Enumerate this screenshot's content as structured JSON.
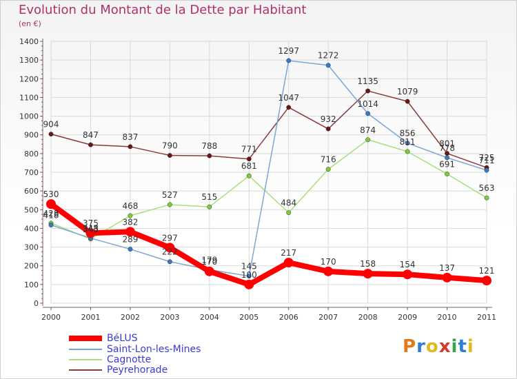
{
  "title": "Evolution du Montant de la Dette par Habitant",
  "subtitle": "(en €)",
  "logo": {
    "text": "Proxiti",
    "colors": [
      "#e07a1f",
      "#2e7ed8",
      "#e0b81f",
      "#d43b2a",
      "#3aa34a",
      "#2e7ed8",
      "#e0b81f"
    ]
  },
  "chart_data": {
    "type": "line",
    "x": [
      "2000",
      "2001",
      "2002",
      "2003",
      "2004",
      "2005",
      "2006",
      "2007",
      "2008",
      "2009",
      "2010",
      "2011"
    ],
    "ylim": [
      0,
      1400
    ],
    "yticks": [
      "0",
      "100",
      "200",
      "300",
      "400",
      "500",
      "600",
      "700",
      "800",
      "900",
      "1000",
      "1100",
      "1200",
      "1300",
      "1400"
    ],
    "grid": true,
    "legend_position": "bottom-left",
    "series": [
      {
        "name": "BéLUS",
        "color": "#ff0000",
        "point_color": "#ff0000",
        "values": [
          530,
          375,
          382,
          297,
          170,
          100,
          217,
          170,
          158,
          154,
          137,
          121
        ],
        "labels": [
          "530",
          "375",
          "382",
          "297",
          "170",
          "100",
          "217",
          "170",
          "158",
          "154",
          "137",
          "121"
        ]
      },
      {
        "name": "Saint-Lon-les-Mines",
        "color": "#7aa6d6",
        "point_color": "#3a7ac4",
        "values": [
          418,
          348,
          289,
          222,
          179,
          145,
          1297,
          1272,
          1014,
          856,
          778,
          711
        ],
        "labels": [
          "418",
          "348",
          "289",
          "222",
          "179",
          "145",
          "1297",
          "1272",
          "1014",
          "856",
          "778",
          "711"
        ]
      },
      {
        "name": "Cagnotte",
        "color": "#a6e07a",
        "point_color": "#7ccc3a",
        "values": [
          428,
          343,
          468,
          527,
          515,
          681,
          484,
          716,
          874,
          811,
          691,
          563
        ],
        "labels": [
          "428",
          "343",
          "468",
          "527",
          "515",
          "681",
          "484",
          "716",
          "874",
          "811",
          "691",
          "563"
        ]
      },
      {
        "name": "Peyrehorade",
        "color": "#8a3a3a",
        "point_color": "#6b1616",
        "values": [
          904,
          847,
          837,
          790,
          788,
          771,
          1047,
          932,
          1135,
          1079,
          801,
          725
        ],
        "labels": [
          "904",
          "847",
          "837",
          "790",
          "788",
          "771",
          "1047",
          "932",
          "1135",
          "1079",
          "801",
          "725"
        ]
      }
    ]
  }
}
